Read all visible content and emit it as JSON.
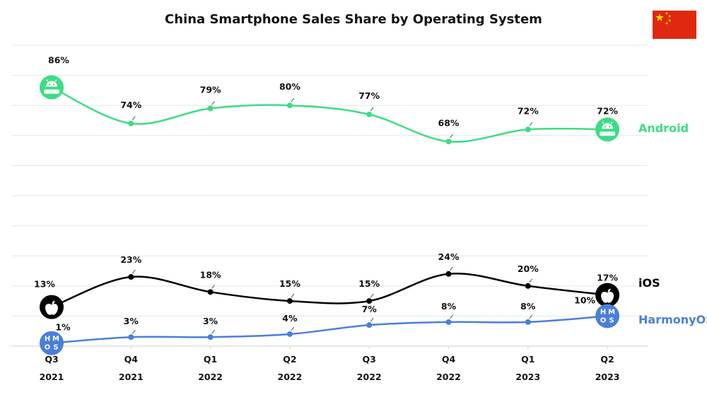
{
  "chart_data": {
    "type": "line",
    "title": "China Smartphone Sales Share by Operating System",
    "categories": [
      {
        "quarter": "Q3",
        "year": "2021"
      },
      {
        "quarter": "Q4",
        "year": "2021"
      },
      {
        "quarter": "Q1",
        "year": "2022"
      },
      {
        "quarter": "Q2",
        "year": "2022"
      },
      {
        "quarter": "Q3",
        "year": "2022"
      },
      {
        "quarter": "Q4",
        "year": "2022"
      },
      {
        "quarter": "Q1",
        "year": "2023"
      },
      {
        "quarter": "Q2",
        "year": "2023"
      }
    ],
    "ylim": [
      0,
      100
    ],
    "grid": true,
    "unit": "%",
    "series": [
      {
        "name": "Android",
        "color": "#3ddc84",
        "icon": "android-icon",
        "values": [
          86,
          74,
          79,
          80,
          77,
          68,
          72,
          72
        ],
        "labels": [
          "86%",
          "74%",
          "79%",
          "80%",
          "77%",
          "68%",
          "72%",
          "72%"
        ]
      },
      {
        "name": "iOS",
        "color": "#000000",
        "icon": "apple-icon",
        "values": [
          13,
          23,
          18,
          15,
          15,
          24,
          20,
          17
        ],
        "labels": [
          "13%",
          "23%",
          "18%",
          "15%",
          "15%",
          "24%",
          "20%",
          "17%"
        ]
      },
      {
        "name": "HarmonyOS",
        "color": "#4a7fd9",
        "icon": "harmonyos-icon",
        "icon_letters": [
          "H",
          "M",
          "O",
          "S"
        ],
        "values": [
          1,
          3,
          3,
          4,
          7,
          8,
          8,
          10
        ],
        "labels": [
          "1%",
          "3%",
          "3%",
          "4%",
          "7%",
          "8%",
          "8%",
          "10%"
        ]
      }
    ],
    "flag": {
      "name": "china-flag-icon",
      "red": "#de2910",
      "yellow": "#ffde00"
    }
  }
}
